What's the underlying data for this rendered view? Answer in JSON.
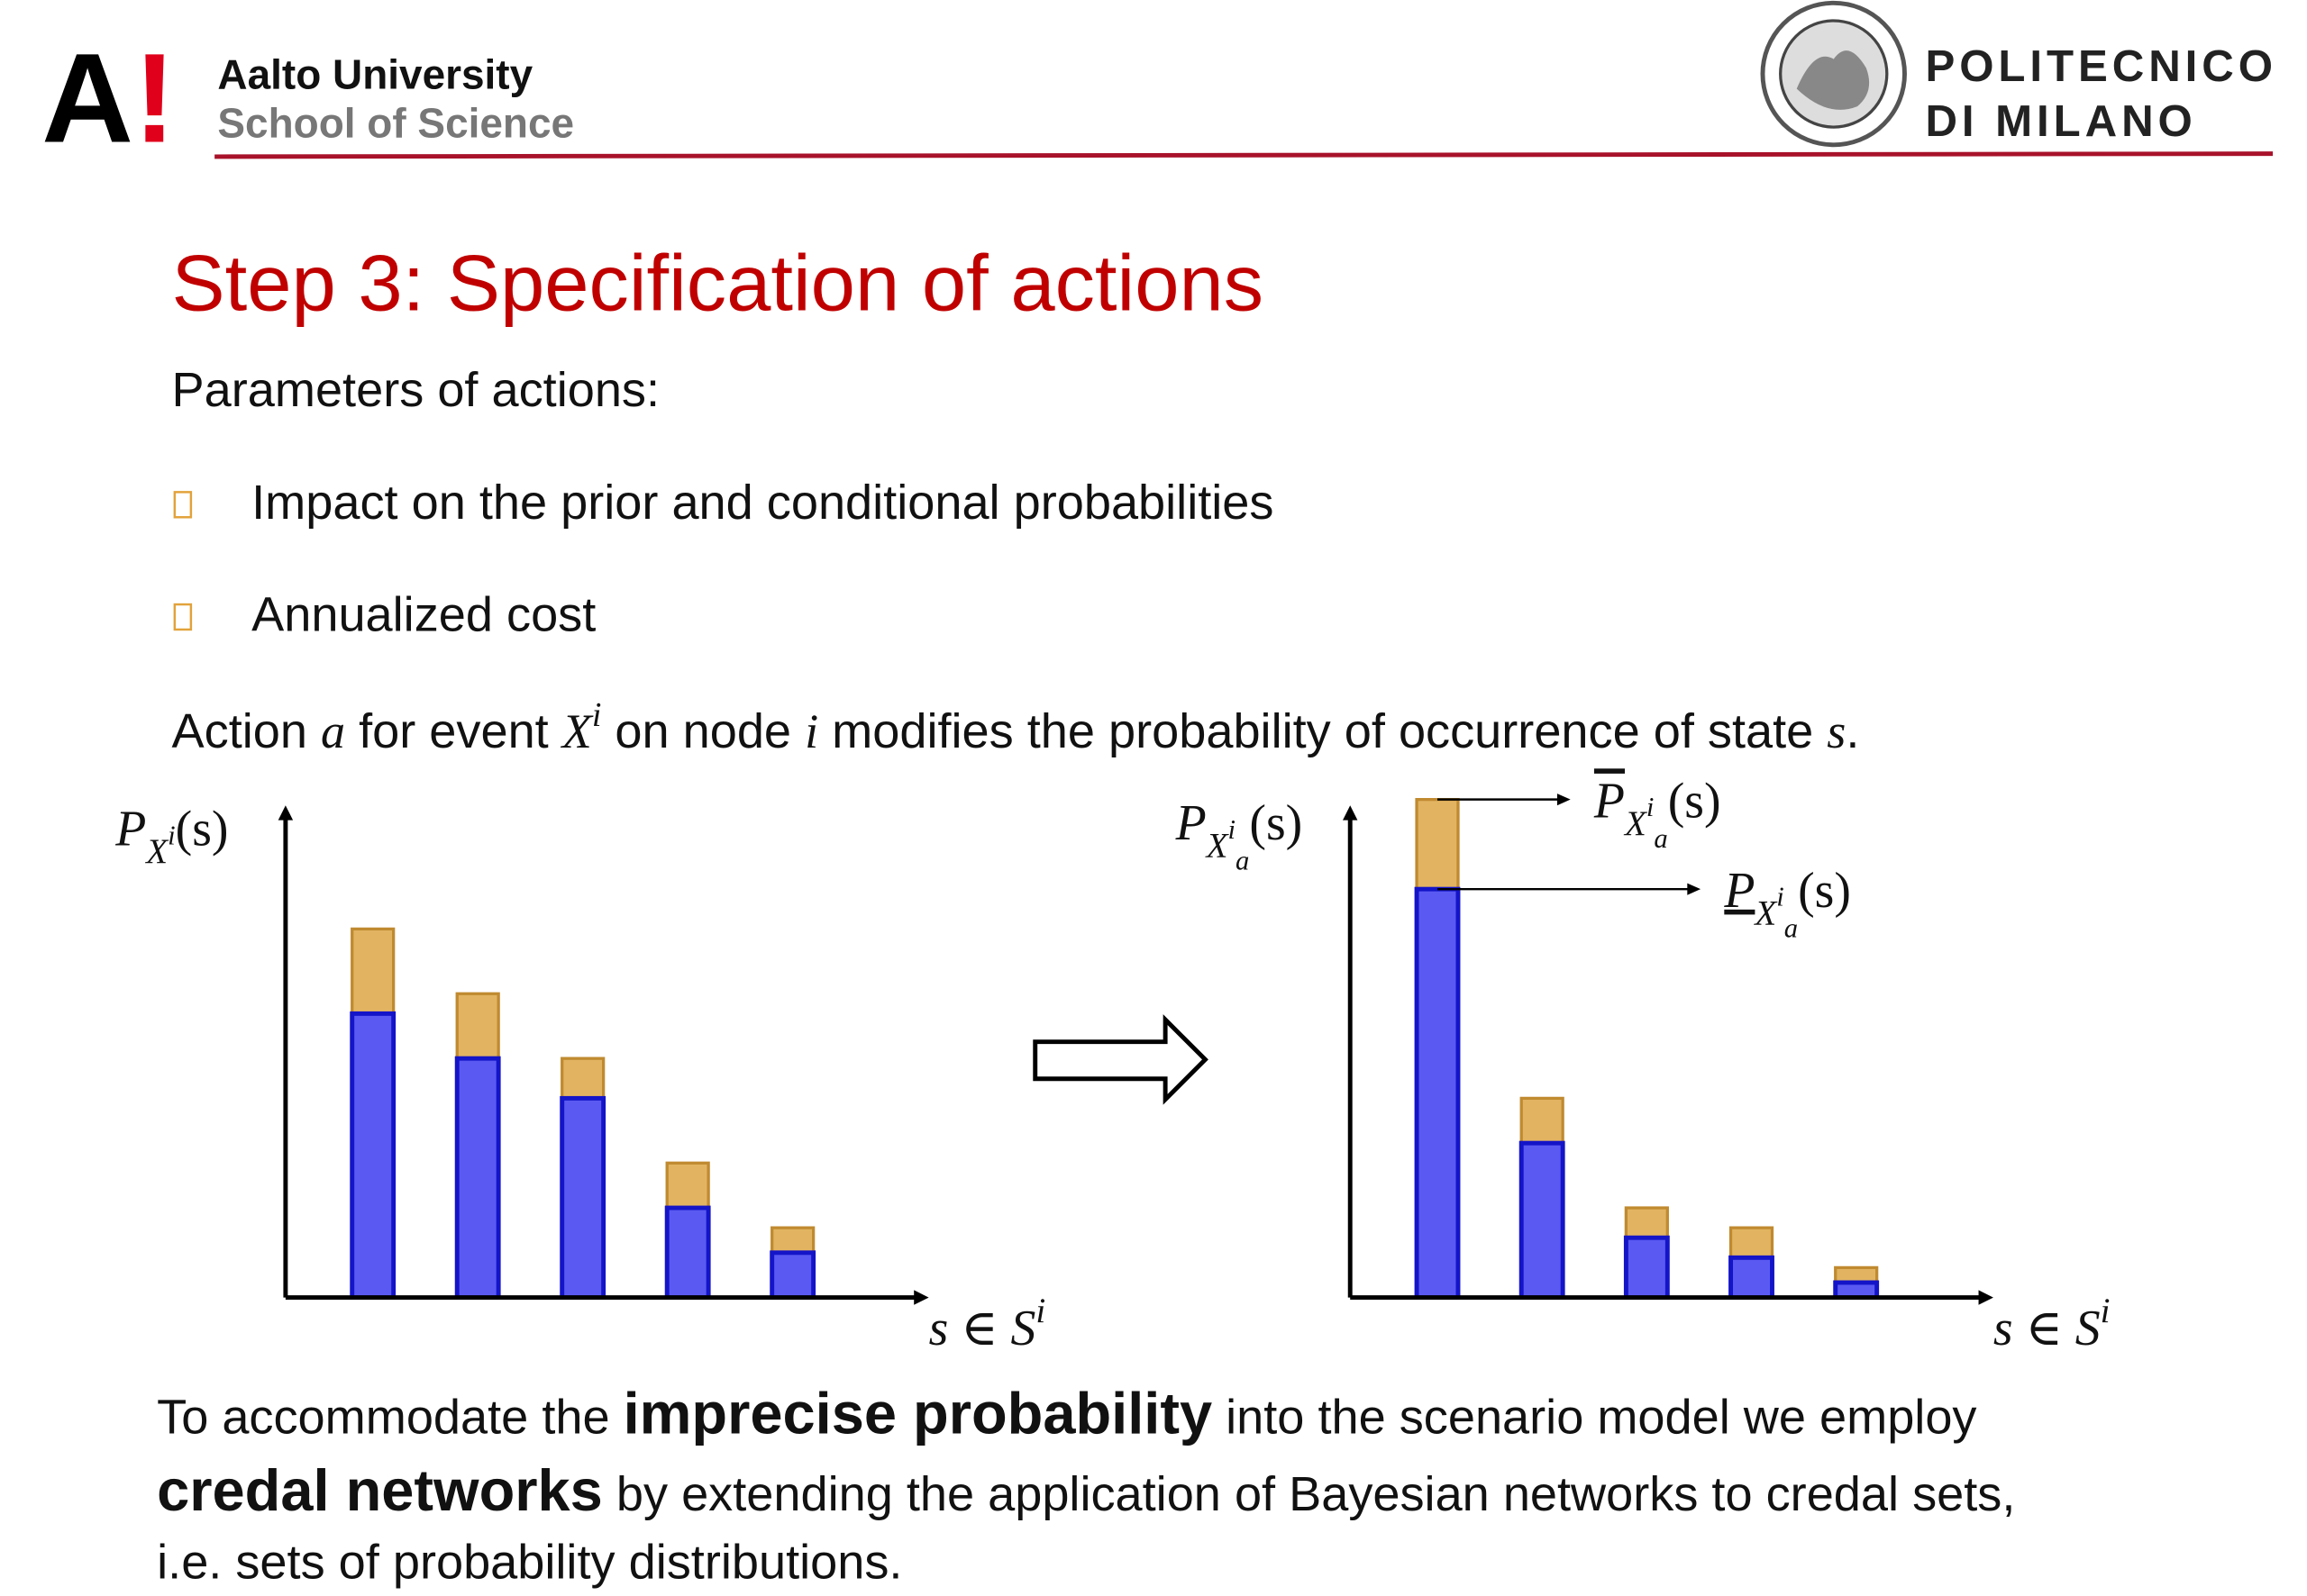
{
  "header": {
    "aalto_logo": [
      "A",
      "!"
    ],
    "aalto_name": "Aalto University",
    "aalto_school": "School of Science",
    "polimi_line1": "POLITECNICO",
    "polimi_line2": "DI MILANO"
  },
  "title": "Step 3: Specification of actions",
  "intro": "Parameters of actions:",
  "bullets": [
    "Impact on the prior and conditional probabilities",
    "Annualized cost"
  ],
  "sentence": [
    {
      "text": "Action ",
      "style": "text"
    },
    {
      "text": "a",
      "style": "math"
    },
    {
      "text": " for event ",
      "style": "text"
    },
    {
      "text": "X",
      "style": "math"
    },
    {
      "text": "i",
      "style": "sup"
    },
    {
      "text": " on node ",
      "style": "text"
    },
    {
      "text": "i",
      "style": "math"
    },
    {
      "text": " modifies the probability of occurrence of state ",
      "style": "text"
    },
    {
      "text": "s",
      "style": "math"
    },
    {
      "text": ".",
      "style": "text"
    }
  ],
  "chart_data": [
    {
      "type": "bar",
      "y_label": [
        {
          "text": "P",
          "style": "math"
        },
        {
          "text": "X",
          "style": "sub"
        },
        {
          "text": "i",
          "style": "subsup"
        },
        {
          "text": "(s)",
          "style": "mathup"
        }
      ],
      "x_label": [
        {
          "text": "s ∈ S",
          "style": "math"
        },
        {
          "text": "i",
          "style": "sup"
        }
      ],
      "ylim": [
        0,
        1
      ],
      "lower": [
        0.57,
        0.48,
        0.4,
        0.18,
        0.09
      ],
      "upper": [
        0.74,
        0.61,
        0.48,
        0.27,
        0.14
      ],
      "lower_color": "#5a5af2",
      "upper_color": "#e2b462"
    },
    {
      "type": "bar",
      "y_label": [
        {
          "text": "P",
          "style": "math"
        },
        {
          "text": "X",
          "style": "sub"
        },
        {
          "text": "i",
          "style": "subsup"
        },
        {
          "text": "a",
          "style": "subsub"
        },
        {
          "text": "(s)",
          "style": "mathup"
        }
      ],
      "x_label": [
        {
          "text": "s ∈ S",
          "style": "math"
        },
        {
          "text": "i",
          "style": "sup"
        }
      ],
      "ylim": [
        0,
        1
      ],
      "lower": [
        0.82,
        0.31,
        0.12,
        0.08,
        0.03
      ],
      "upper": [
        1.0,
        0.4,
        0.18,
        0.14,
        0.06
      ],
      "lower_color": "#5a5af2",
      "upper_color": "#e2b462",
      "annotations": [
        [
          {
            "text": "P",
            "style": "mathover"
          },
          {
            "text": "X",
            "style": "sub"
          },
          {
            "text": "i",
            "style": "subsup"
          },
          {
            "text": "a",
            "style": "subsub"
          },
          {
            "text": "(s)",
            "style": "mathup"
          }
        ],
        [
          {
            "text": "P",
            "style": "mathunder"
          },
          {
            "text": "X",
            "style": "sub"
          },
          {
            "text": "i",
            "style": "subsup"
          },
          {
            "text": "a",
            "style": "subsub"
          },
          {
            "text": "(s)",
            "style": "mathup"
          }
        ]
      ]
    }
  ],
  "conclusion": [
    [
      {
        "text": "To accommodate the ",
        "style": "text"
      },
      {
        "text": "imprecise probability",
        "style": "bold"
      },
      {
        "text": " into the scenario model we employ",
        "style": "text"
      }
    ],
    [
      {
        "text": "credal networks",
        "style": "bold"
      },
      {
        "text": " by extending the application of Bayesian networks to credal sets,",
        "style": "text"
      }
    ],
    [
      {
        "text": "i.e. sets of probability distributions.",
        "style": "text"
      }
    ]
  ]
}
